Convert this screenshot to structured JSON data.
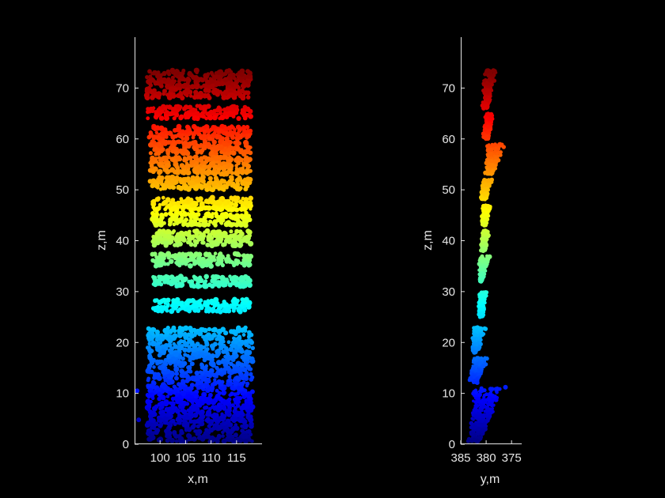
{
  "figure": {
    "background": "#000000",
    "foreground": "#e6e6e6",
    "colormap": "jet",
    "colormap_range": [
      0,
      73
    ]
  },
  "chart_data": [
    {
      "type": "scatter",
      "subplot": "left",
      "xlabel": "x,m",
      "ylabel": "z,m",
      "xlim": [
        95,
        120
      ],
      "ylim": [
        0,
        80
      ],
      "xticks": [
        100,
        105,
        110,
        115
      ],
      "yticks": [
        0,
        10,
        20,
        30,
        40,
        50,
        60,
        70
      ],
      "xtick_labels": [
        "100",
        "105",
        "110",
        "115"
      ],
      "ytick_labels": [
        "0",
        "10",
        "20",
        "30",
        "40",
        "50",
        "60",
        "70"
      ],
      "color_by": "z",
      "point_bands": [
        {
          "x": [
            97.3,
            117.8
          ],
          "z": [
            68,
            73.5
          ]
        },
        {
          "x": [
            97.5,
            117.8
          ],
          "z": [
            64,
            66.5
          ]
        },
        {
          "x": [
            97.8,
            117.8
          ],
          "z": [
            60,
            62.5
          ]
        },
        {
          "x": [
            98.0,
            117.8
          ],
          "z": [
            57,
            59.5
          ]
        },
        {
          "x": [
            98.0,
            117.8
          ],
          "z": [
            53,
            56.5
          ]
        },
        {
          "x": [
            98.0,
            117.8
          ],
          "z": [
            50,
            52.5
          ]
        },
        {
          "x": [
            98.5,
            117.8
          ],
          "z": [
            46,
            48.5
          ]
        },
        {
          "x": [
            98.5,
            117.8
          ],
          "z": [
            43,
            45.5
          ]
        },
        {
          "x": [
            98.5,
            117.8
          ],
          "z": [
            39,
            42.0
          ]
        },
        {
          "x": [
            98.5,
            117.8
          ],
          "z": [
            35,
            37.5
          ]
        },
        {
          "x": [
            98.5,
            117.8
          ],
          "z": [
            31,
            33.0
          ]
        },
        {
          "x": [
            98.5,
            117.8
          ],
          "z": [
            26,
            28.5
          ]
        },
        {
          "x": [
            97.5,
            118.2
          ],
          "z": [
            0.5,
            23.0
          ]
        }
      ],
      "outliers": [
        {
          "x": 95.5,
          "z": 10.5
        },
        {
          "x": 95.8,
          "z": 4.8
        }
      ]
    },
    {
      "type": "scatter",
      "subplot": "right",
      "xlabel": "y,m",
      "ylabel": "z,m",
      "xlim": [
        385,
        373
      ],
      "x_reversed": true,
      "ylim": [
        0,
        80
      ],
      "xticks": [
        385,
        380,
        375
      ],
      "yticks": [
        0,
        10,
        20,
        30,
        40,
        50,
        60,
        70
      ],
      "xtick_labels": [
        "385",
        "380",
        "375"
      ],
      "ytick_labels": [
        "0",
        "10",
        "20",
        "30",
        "40",
        "50",
        "60",
        "70"
      ],
      "color_by": "z",
      "point_bands": [
        {
          "y": [
            380.8,
            378.2
          ],
          "z": [
            66,
            73.5
          ]
        },
        {
          "y": [
            380.5,
            378.5
          ],
          "z": [
            60,
            65
          ]
        },
        {
          "y": [
            380.5,
            376.5
          ],
          "z": [
            53,
            59
          ]
        },
        {
          "y": [
            381.0,
            379.0
          ],
          "z": [
            48,
            52
          ]
        },
        {
          "y": [
            381.0,
            379.0
          ],
          "z": [
            43,
            47
          ]
        },
        {
          "y": [
            381.0,
            379.5
          ],
          "z": [
            38,
            42
          ]
        },
        {
          "y": [
            381.5,
            379.5
          ],
          "z": [
            32,
            37
          ]
        },
        {
          "y": [
            381.5,
            380.0
          ],
          "z": [
            25,
            30
          ]
        },
        {
          "y": [
            383.0,
            380.0
          ],
          "z": [
            18,
            23
          ]
        },
        {
          "y": [
            383.5,
            379.5
          ],
          "z": [
            12,
            17
          ]
        },
        {
          "y": [
            384.0,
            377.0
          ],
          "z": [
            0.5,
            11
          ]
        }
      ],
      "outliers": [
        {
          "y": 376.2,
          "z": 11.2
        }
      ]
    }
  ]
}
